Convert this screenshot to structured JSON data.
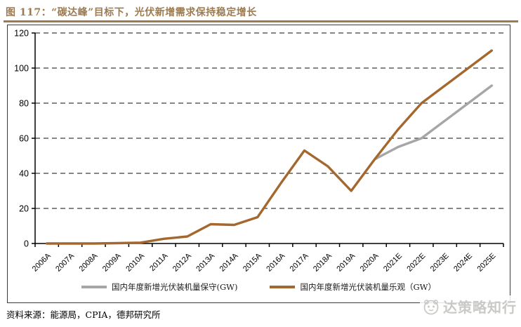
{
  "header": {
    "figure_caption": "图 117：“碳达峰”目标下，光伏新增需求保持稳定增长"
  },
  "colors": {
    "accent_brown": "#9C7B50",
    "optimistic_line": "#A4672D",
    "conservative_line": "#A6A6A6",
    "gridline": "#3F3F3F",
    "frame_border": "#3A3A3A",
    "watermark_gray": "#C9C9C6"
  },
  "chart_data": {
    "type": "line",
    "title": "图 117：“碳达峰”目标下，光伏新增需求保持稳定增长",
    "categories": [
      "2006A",
      "2007A",
      "2008A",
      "2009A",
      "2010A",
      "2011A",
      "2012A",
      "2013A",
      "2014A",
      "2015A",
      "2016A",
      "2017A",
      "2018A",
      "2019A",
      "2020A",
      "2021E",
      "2022E",
      "2023E",
      "2024E",
      "2025E"
    ],
    "series": [
      {
        "id": "conservative",
        "name": "国内年度新增光伏装机量保守(GW)",
        "color": "#A6A6A6",
        "values": [
          null,
          null,
          null,
          null,
          null,
          null,
          null,
          null,
          null,
          null,
          null,
          null,
          null,
          null,
          48,
          55,
          60,
          70,
          80,
          90
        ]
      },
      {
        "id": "optimistic",
        "name": "国内年度新增光伏装机量乐观（GW）",
        "color": "#A4672D",
        "values": [
          0,
          0,
          0,
          0.2,
          0.5,
          2.7,
          4,
          11,
          10.6,
          15,
          34.5,
          53,
          44,
          30,
          48,
          65,
          80,
          90,
          100,
          110
        ]
      }
    ],
    "xlabel": "",
    "ylabel": "",
    "ylim": [
      0,
      120
    ],
    "ytick_interval": 20,
    "yticks": [
      0,
      20,
      40,
      60,
      80,
      100,
      120
    ],
    "grid": "horizontal-dashed",
    "legend_position": "bottom"
  },
  "footer": {
    "source": "资料来源：能源局，CPIA，德邦研究所"
  },
  "watermark": {
    "icon": "panda-face-logo-icon",
    "text": "达策略知行"
  }
}
